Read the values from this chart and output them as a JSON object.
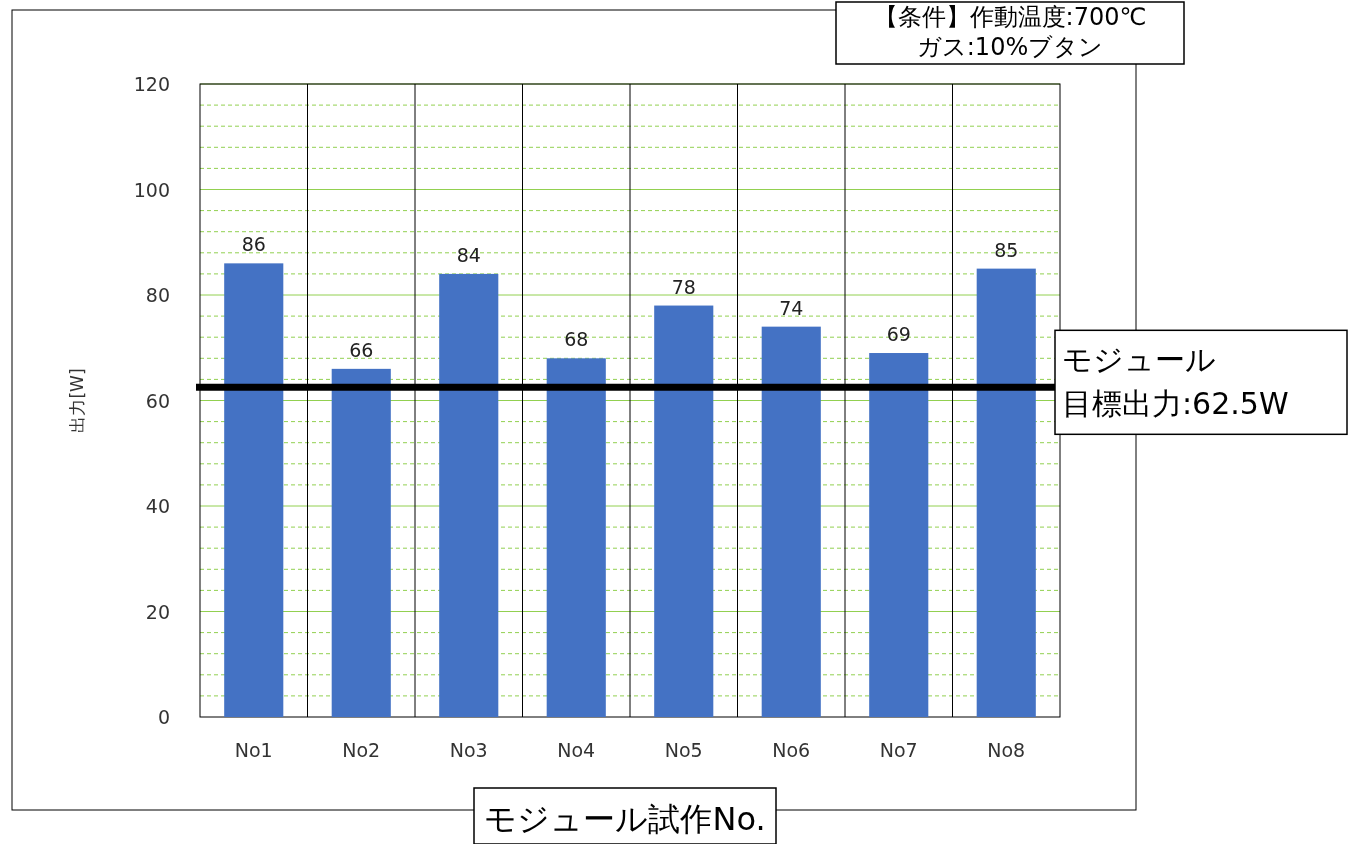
{
  "chart_data": {
    "type": "bar",
    "xlabel": "モジュール試作No.",
    "ylabel": "出力[W]",
    "categories": [
      "No1",
      "No2",
      "No3",
      "No4",
      "No5",
      "No6",
      "No7",
      "No8"
    ],
    "values": [
      86,
      66,
      84,
      68,
      78,
      74,
      69,
      85
    ],
    "color": "#4472c4",
    "data_labels": true,
    "ylim": [
      0,
      120
    ],
    "yticks": [
      0,
      {
        "value": 4,
        "label": null
      },
      {
        "value": 8,
        "label": null
      },
      {
        "value": 12,
        "label": null
      },
      {
        "value": 16,
        "label": null
      },
      20,
      {
        "value": 24,
        "label": null
      },
      {
        "value": 28,
        "label": null
      },
      {
        "value": 32,
        "label": null
      },
      {
        "value": 36,
        "label": null
      },
      40,
      {
        "value": 44,
        "label": null
      },
      {
        "value": 48,
        "label": null
      },
      {
        "value": 52,
        "label": null
      },
      {
        "value": 56,
        "label": null
      },
      60,
      {
        "value": 64,
        "label": null
      },
      {
        "value": 68,
        "label": null
      },
      {
        "value": 72,
        "label": null
      },
      {
        "value": 76,
        "label": null
      },
      80,
      {
        "value": 84,
        "label": null
      },
      {
        "value": 88,
        "label": null
      },
      {
        "value": 92,
        "label": null
      },
      {
        "value": 96,
        "label": null
      },
      100,
      {
        "value": 104,
        "label": null
      },
      {
        "value": 108,
        "label": null
      },
      {
        "value": 112,
        "label": null
      },
      {
        "value": 116,
        "label": null
      },
      120
    ],
    "grid": "y",
    "ref_lines": [
      {
        "axis": "y",
        "value": 62.5,
        "label": "モジュール目標出力:62.5W",
        "color": "#000000"
      }
    ],
    "annotations": [
      "【条件】作動温度:700℃\nガス:10%ブタン"
    ]
  }
}
